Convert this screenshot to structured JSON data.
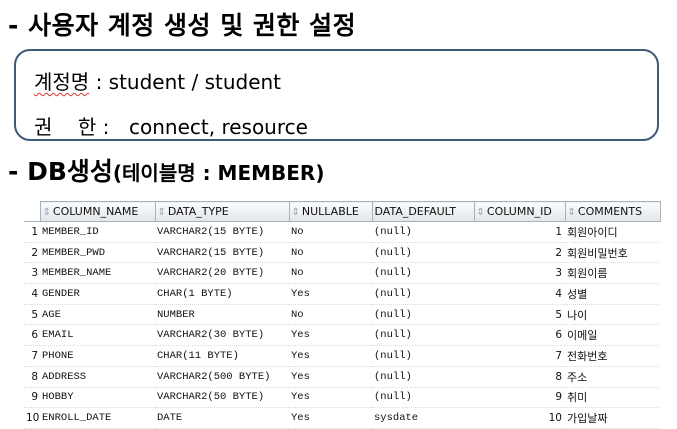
{
  "heading1": "- 사용자 계정 생성 및 권한 설정",
  "account": {
    "label1": "계정명",
    "value1": ": student / student",
    "label2": "권    한 :",
    "value2": "connect, resource"
  },
  "heading2": {
    "main": "- DB생성",
    "sub": "(테이블명 : MEMBER)"
  },
  "table": {
    "sort_icon": "sort-icon",
    "columns": [
      "COLUMN_NAME",
      "DATA_TYPE",
      "NULLABLE",
      "DATA_DEFAULT",
      "COLUMN_ID",
      "COMMENTS"
    ],
    "rows": [
      {
        "rn": "1",
        "name": "MEMBER_ID",
        "type": "VARCHAR2(15 BYTE)",
        "nullable": "No",
        "default": "(null)",
        "id": "1",
        "comment": "회원아이디"
      },
      {
        "rn": "2",
        "name": "MEMBER_PWD",
        "type": "VARCHAR2(15 BYTE)",
        "nullable": "No",
        "default": "(null)",
        "id": "2",
        "comment": "회원비밀번호"
      },
      {
        "rn": "3",
        "name": "MEMBER_NAME",
        "type": "VARCHAR2(20 BYTE)",
        "nullable": "No",
        "default": "(null)",
        "id": "3",
        "comment": "회원이름"
      },
      {
        "rn": "4",
        "name": "GENDER",
        "type": "CHAR(1 BYTE)",
        "nullable": "Yes",
        "default": "(null)",
        "id": "4",
        "comment": "성별"
      },
      {
        "rn": "5",
        "name": "AGE",
        "type": "NUMBER",
        "nullable": "No",
        "default": "(null)",
        "id": "5",
        "comment": "나이"
      },
      {
        "rn": "6",
        "name": "EMAIL",
        "type": "VARCHAR2(30 BYTE)",
        "nullable": "Yes",
        "default": "(null)",
        "id": "6",
        "comment": "이메일"
      },
      {
        "rn": "7",
        "name": "PHONE",
        "type": "CHAR(11 BYTE)",
        "nullable": "Yes",
        "default": "(null)",
        "id": "7",
        "comment": "전화번호"
      },
      {
        "rn": "8",
        "name": "ADDRESS",
        "type": "VARCHAR2(500 BYTE)",
        "nullable": "Yes",
        "default": "(null)",
        "id": "8",
        "comment": "주소"
      },
      {
        "rn": "9",
        "name": "HOBBY",
        "type": "VARCHAR2(50 BYTE)",
        "nullable": "Yes",
        "default": "(null)",
        "id": "9",
        "comment": "취미"
      },
      {
        "rn": "10",
        "name": "ENROLL_DATE",
        "type": "DATE",
        "nullable": "Yes",
        "default": "sysdate",
        "id": "10",
        "comment": "가입날짜"
      }
    ]
  }
}
